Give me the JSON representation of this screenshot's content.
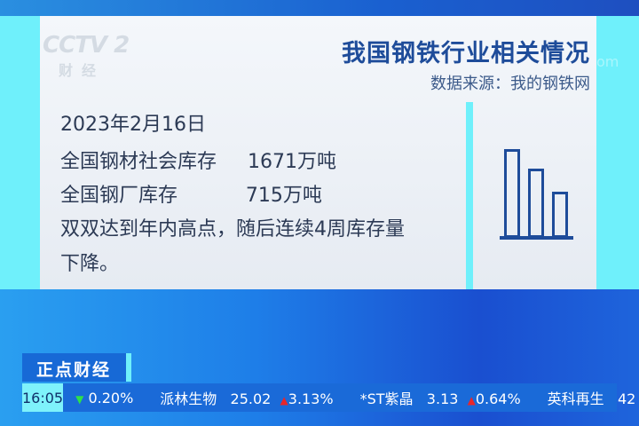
{
  "logo": {
    "text": "CCTV 2",
    "sub": "财经"
  },
  "header": {
    "title": "我国钢铁行业相关情况",
    "source": "数据来源：我的钢铁网",
    "watermark": "om"
  },
  "content": {
    "lines": [
      "2023年2月16日",
      "全国钢材社会库存     1671万吨",
      "全国钢厂库存           715万吨",
      "双双达到年内高点，随后连续4周库存量",
      "下降。"
    ]
  },
  "icon": {
    "name": "bar-chart-icon",
    "bar_levels": [
      1,
      0.78,
      0.52
    ],
    "color": "#1e4c9a"
  },
  "program": {
    "name": "正点财经"
  },
  "ticker": {
    "time": "16:05",
    "items": [
      {
        "name": "",
        "price": "",
        "direction": "down",
        "change": "0.20%"
      },
      {
        "name": "派林生物",
        "price": "25.02",
        "direction": "up",
        "change": "3.13%"
      },
      {
        "name": "*ST紫晶",
        "price": "3.13",
        "direction": "up",
        "change": "0.64%"
      },
      {
        "name": "英科再生",
        "price": "42",
        "direction": "",
        "change": ""
      }
    ],
    "colors": {
      "up": "#e8262a",
      "down": "#2ee04a"
    }
  }
}
